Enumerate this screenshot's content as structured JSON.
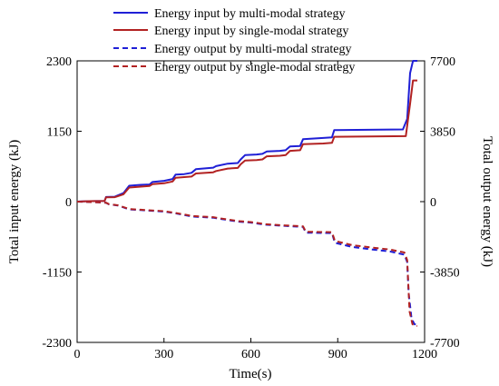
{
  "chart_data": {
    "type": "line",
    "xlabel": "Time(s)",
    "ylabel_left": "Total input energy (kJ)",
    "ylabel_right": "Total output energy (kJ)",
    "xlim": [
      0,
      1200
    ],
    "ylim_left": [
      -2300,
      2300
    ],
    "ylim_right": [
      -7700,
      7700
    ],
    "x_ticks": [
      0,
      300,
      600,
      900,
      1200
    ],
    "x_tick_labels": [
      "0",
      "300",
      "600",
      "900",
      "1200"
    ],
    "y_left_ticks": [
      2300,
      1150,
      0,
      -1150,
      -2300
    ],
    "y_left_tick_labels": [
      "2300",
      "1150",
      "0",
      "-1150",
      "-2300"
    ],
    "y_right_ticks": [
      7700,
      3850,
      0,
      -3850,
      -7700
    ],
    "y_right_tick_labels": [
      "7700",
      "3850",
      "0",
      "-3850",
      "-7700"
    ],
    "grid": false,
    "legend_position": "top-center",
    "series": [
      {
        "name": "Energy input by multi-modal strategy",
        "color": "#1f1fd6",
        "dash": "solid",
        "axis": "left",
        "points": [
          [
            0,
            0
          ],
          [
            40,
            8
          ],
          [
            95,
            12
          ],
          [
            100,
            75
          ],
          [
            130,
            80
          ],
          [
            160,
            140
          ],
          [
            180,
            260
          ],
          [
            220,
            275
          ],
          [
            250,
            280
          ],
          [
            260,
            320
          ],
          [
            300,
            340
          ],
          [
            330,
            370
          ],
          [
            340,
            440
          ],
          [
            370,
            450
          ],
          [
            395,
            470
          ],
          [
            410,
            530
          ],
          [
            470,
            555
          ],
          [
            480,
            580
          ],
          [
            520,
            620
          ],
          [
            555,
            630
          ],
          [
            565,
            690
          ],
          [
            580,
            760
          ],
          [
            620,
            770
          ],
          [
            640,
            780
          ],
          [
            655,
            820
          ],
          [
            700,
            830
          ],
          [
            720,
            840
          ],
          [
            735,
            900
          ],
          [
            770,
            910
          ],
          [
            780,
            1020
          ],
          [
            850,
            1040
          ],
          [
            880,
            1050
          ],
          [
            888,
            1170
          ],
          [
            1125,
            1180
          ],
          [
            1140,
            1350
          ],
          [
            1150,
            2100
          ],
          [
            1160,
            2300
          ],
          [
            1175,
            2300
          ]
        ]
      },
      {
        "name": "Energy input by single-modal strategy",
        "color": "#b22222",
        "dash": "solid",
        "axis": "left",
        "points": [
          [
            0,
            0
          ],
          [
            40,
            8
          ],
          [
            95,
            12
          ],
          [
            100,
            70
          ],
          [
            130,
            72
          ],
          [
            160,
            120
          ],
          [
            180,
            230
          ],
          [
            220,
            245
          ],
          [
            250,
            255
          ],
          [
            260,
            285
          ],
          [
            300,
            300
          ],
          [
            330,
            330
          ],
          [
            340,
            390
          ],
          [
            370,
            400
          ],
          [
            395,
            410
          ],
          [
            410,
            460
          ],
          [
            470,
            480
          ],
          [
            480,
            500
          ],
          [
            520,
            540
          ],
          [
            555,
            550
          ],
          [
            565,
            610
          ],
          [
            580,
            670
          ],
          [
            620,
            680
          ],
          [
            640,
            690
          ],
          [
            655,
            740
          ],
          [
            700,
            750
          ],
          [
            720,
            760
          ],
          [
            735,
            830
          ],
          [
            770,
            840
          ],
          [
            780,
            940
          ],
          [
            850,
            950
          ],
          [
            880,
            960
          ],
          [
            888,
            1060
          ],
          [
            1135,
            1070
          ],
          [
            1150,
            1600
          ],
          [
            1160,
            1980
          ],
          [
            1175,
            1980
          ]
        ]
      },
      {
        "name": "Energy output by multi-modal strategy",
        "color": "#1f1fd6",
        "dash": "dashed",
        "axis": "right",
        "points": [
          [
            0,
            0
          ],
          [
            60,
            -30
          ],
          [
            100,
            -60
          ],
          [
            110,
            -150
          ],
          [
            140,
            -210
          ],
          [
            180,
            -420
          ],
          [
            220,
            -460
          ],
          [
            260,
            -500
          ],
          [
            300,
            -540
          ],
          [
            340,
            -640
          ],
          [
            400,
            -820
          ],
          [
            470,
            -880
          ],
          [
            500,
            -960
          ],
          [
            560,
            -1100
          ],
          [
            600,
            -1150
          ],
          [
            650,
            -1260
          ],
          [
            720,
            -1330
          ],
          [
            780,
            -1380
          ],
          [
            790,
            -1700
          ],
          [
            880,
            -1720
          ],
          [
            890,
            -2250
          ],
          [
            950,
            -2480
          ],
          [
            1020,
            -2620
          ],
          [
            1080,
            -2720
          ],
          [
            1130,
            -2900
          ],
          [
            1140,
            -3300
          ],
          [
            1145,
            -5000
          ],
          [
            1155,
            -6400
          ],
          [
            1165,
            -6700
          ],
          [
            1175,
            -6750
          ]
        ]
      },
      {
        "name": "Energy output by single-modal strategy",
        "color": "#b22222",
        "dash": "dashed",
        "axis": "right",
        "points": [
          [
            0,
            0
          ],
          [
            60,
            -30
          ],
          [
            100,
            -60
          ],
          [
            110,
            -140
          ],
          [
            140,
            -200
          ],
          [
            180,
            -400
          ],
          [
            220,
            -440
          ],
          [
            260,
            -480
          ],
          [
            300,
            -520
          ],
          [
            340,
            -620
          ],
          [
            400,
            -790
          ],
          [
            470,
            -850
          ],
          [
            500,
            -930
          ],
          [
            560,
            -1070
          ],
          [
            600,
            -1120
          ],
          [
            650,
            -1230
          ],
          [
            720,
            -1300
          ],
          [
            780,
            -1350
          ],
          [
            790,
            -1650
          ],
          [
            880,
            -1670
          ],
          [
            890,
            -2150
          ],
          [
            950,
            -2380
          ],
          [
            1020,
            -2520
          ],
          [
            1080,
            -2620
          ],
          [
            1130,
            -2780
          ],
          [
            1140,
            -3200
          ],
          [
            1148,
            -6000
          ],
          [
            1158,
            -6700
          ],
          [
            1168,
            -6800
          ],
          [
            1175,
            -6800
          ]
        ]
      }
    ]
  }
}
